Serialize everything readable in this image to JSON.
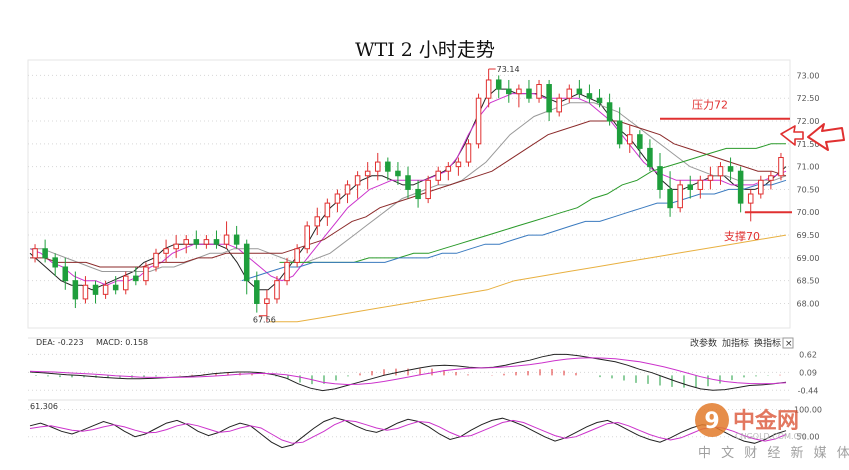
{
  "chart_data": [
    {
      "type": "candlestick",
      "title": "WTI 2 小时走势",
      "ylim": [
        67.55,
        73.25
      ],
      "yticks": [
        "73.00",
        "72.50",
        "72.00",
        "71.50",
        "71.00",
        "70.50",
        "70.00",
        "69.50",
        "69.00",
        "68.50",
        "68.00"
      ],
      "high_label": "73.14",
      "low_label": "67.56",
      "annotations": [
        {
          "text": "压力72",
          "level": 72.05
        },
        {
          "text": "支撑70",
          "level": 70.0
        }
      ],
      "arrow_direction": "up-right",
      "candles": [
        [
          69.0,
          69.3,
          68.9,
          69.2
        ],
        [
          69.2,
          69.4,
          68.9,
          69.0
        ],
        [
          69.0,
          69.1,
          68.6,
          68.8
        ],
        [
          68.8,
          69.0,
          68.3,
          68.5
        ],
        [
          68.5,
          68.7,
          67.9,
          68.1
        ],
        [
          68.1,
          68.6,
          68.0,
          68.4
        ],
        [
          68.4,
          68.5,
          68.0,
          68.2
        ],
        [
          68.2,
          68.5,
          68.1,
          68.4
        ],
        [
          68.4,
          68.6,
          68.2,
          68.3
        ],
        [
          68.3,
          68.7,
          68.2,
          68.6
        ],
        [
          68.6,
          68.8,
          68.4,
          68.5
        ],
        [
          68.5,
          68.9,
          68.4,
          68.8
        ],
        [
          68.8,
          69.2,
          68.7,
          69.1
        ],
        [
          69.1,
          69.4,
          68.9,
          69.2
        ],
        [
          69.2,
          69.5,
          69.0,
          69.3
        ],
        [
          69.3,
          69.5,
          69.1,
          69.4
        ],
        [
          69.4,
          69.6,
          69.2,
          69.3
        ],
        [
          69.3,
          69.5,
          69.2,
          69.4
        ],
        [
          69.4,
          69.6,
          69.2,
          69.3
        ],
        [
          69.3,
          69.8,
          69.2,
          69.5
        ],
        [
          69.5,
          69.7,
          69.2,
          69.3
        ],
        [
          69.3,
          69.4,
          68.2,
          68.5
        ],
        [
          68.5,
          68.7,
          67.8,
          68.0
        ],
        [
          68.0,
          68.3,
          67.6,
          68.1
        ],
        [
          68.1,
          68.6,
          68.0,
          68.5
        ],
        [
          68.5,
          69.0,
          68.4,
          68.9
        ],
        [
          68.9,
          69.3,
          68.8,
          69.2
        ],
        [
          69.2,
          69.8,
          69.1,
          69.7
        ],
        [
          69.7,
          70.1,
          69.5,
          69.9
        ],
        [
          69.9,
          70.3,
          69.7,
          70.2
        ],
        [
          70.2,
          70.5,
          70.0,
          70.4
        ],
        [
          70.4,
          70.7,
          70.2,
          70.6
        ],
        [
          70.6,
          70.9,
          70.3,
          70.8
        ],
        [
          70.8,
          71.1,
          70.5,
          70.9
        ],
        [
          70.9,
          71.3,
          70.7,
          71.1
        ],
        [
          71.1,
          71.2,
          70.7,
          70.9
        ],
        [
          70.9,
          71.1,
          70.6,
          70.8
        ],
        [
          70.8,
          71.0,
          70.3,
          70.5
        ],
        [
          70.5,
          70.7,
          70.1,
          70.3
        ],
        [
          70.3,
          70.8,
          70.2,
          70.7
        ],
        [
          70.7,
          71.0,
          70.6,
          70.9
        ],
        [
          70.9,
          71.1,
          70.7,
          71.0
        ],
        [
          71.0,
          71.2,
          70.8,
          71.1
        ],
        [
          71.1,
          71.6,
          71.0,
          71.5
        ],
        [
          71.5,
          72.6,
          71.4,
          72.5
        ],
        [
          72.5,
          73.14,
          72.3,
          72.9
        ],
        [
          72.9,
          73.0,
          72.5,
          72.7
        ],
        [
          72.7,
          72.9,
          72.4,
          72.6
        ],
        [
          72.6,
          72.8,
          72.3,
          72.7
        ],
        [
          72.7,
          72.9,
          72.4,
          72.5
        ],
        [
          72.5,
          72.9,
          72.4,
          72.8
        ],
        [
          72.8,
          72.9,
          72.0,
          72.2
        ],
        [
          72.2,
          72.6,
          72.1,
          72.5
        ],
        [
          72.5,
          72.8,
          72.4,
          72.7
        ],
        [
          72.7,
          72.9,
          72.5,
          72.6
        ],
        [
          72.6,
          72.8,
          72.4,
          72.5
        ],
        [
          72.5,
          72.7,
          72.3,
          72.4
        ],
        [
          72.4,
          72.6,
          71.9,
          72.0
        ],
        [
          72.0,
          72.3,
          71.4,
          71.5
        ],
        [
          71.5,
          71.9,
          71.3,
          71.7
        ],
        [
          71.7,
          71.8,
          71.2,
          71.4
        ],
        [
          71.4,
          71.6,
          70.9,
          71.0
        ],
        [
          71.0,
          71.3,
          70.3,
          70.5
        ],
        [
          70.5,
          70.9,
          69.9,
          70.1
        ],
        [
          70.1,
          70.7,
          70.0,
          70.6
        ],
        [
          70.6,
          70.8,
          70.3,
          70.5
        ],
        [
          70.5,
          70.8,
          70.3,
          70.7
        ],
        [
          70.7,
          71.0,
          70.5,
          70.8
        ],
        [
          70.8,
          71.1,
          70.6,
          71.0
        ],
        [
          71.0,
          71.2,
          70.7,
          70.9
        ],
        [
          70.9,
          71.0,
          70.0,
          70.2
        ],
        [
          70.2,
          70.5,
          69.8,
          70.4
        ],
        [
          70.4,
          70.8,
          70.3,
          70.7
        ],
        [
          70.7,
          70.9,
          70.5,
          70.8
        ],
        [
          70.8,
          71.3,
          70.7,
          71.2
        ]
      ],
      "moving_averages": [
        {
          "color": "#222222",
          "values": [
            69.1,
            68.9,
            68.7,
            68.5,
            68.4,
            68.4,
            68.3,
            68.4,
            68.5,
            68.6,
            68.7,
            68.9,
            69.0,
            69.2,
            69.3,
            69.3,
            69.3,
            69.3,
            69.3,
            69.2,
            68.9,
            68.5,
            68.3,
            68.3,
            68.5,
            68.8,
            69.1,
            69.4,
            69.8,
            70.1,
            70.3,
            70.5,
            70.7,
            70.8,
            70.8,
            70.7,
            70.6,
            70.6,
            70.7,
            70.8,
            70.9,
            71.1,
            71.5,
            72.0,
            72.5,
            72.7,
            72.7,
            72.6,
            72.6,
            72.6,
            72.5,
            72.4,
            72.5,
            72.6,
            72.5,
            72.4,
            72.1,
            71.8,
            71.6,
            71.3,
            71.0,
            70.7,
            70.5,
            70.5,
            70.6,
            70.7,
            70.8,
            70.8,
            70.6,
            70.5,
            70.5,
            70.6,
            70.8,
            71.0
          ]
        },
        {
          "color": "#cc33cc",
          "values": [
            69.2,
            69.1,
            68.9,
            68.8,
            68.6,
            68.5,
            68.5,
            68.4,
            68.5,
            68.5,
            68.6,
            68.8,
            68.9,
            69.1,
            69.2,
            69.3,
            69.3,
            69.3,
            69.3,
            69.2,
            69.0,
            68.8,
            68.6,
            68.5,
            68.6,
            68.9,
            69.2,
            69.5,
            69.8,
            70.1,
            70.3,
            70.5,
            70.6,
            70.7,
            70.7,
            70.7,
            70.7,
            70.8,
            70.9,
            71.2,
            71.7,
            72.1,
            72.4,
            72.5,
            72.6,
            72.6,
            72.6,
            72.5,
            72.5,
            72.5,
            72.5,
            72.4,
            72.2,
            72.0,
            71.7,
            71.4,
            71.1,
            70.9,
            70.8,
            70.7,
            70.7,
            70.7,
            70.7,
            70.7,
            70.6,
            70.6,
            70.6,
            70.7,
            70.8,
            70.9
          ]
        },
        {
          "color": "#999999",
          "values": [
            69.2,
            69.2,
            69.1,
            69.0,
            68.9,
            68.8,
            68.7,
            68.7,
            68.7,
            68.7,
            68.7,
            68.8,
            68.8,
            68.9,
            69.0,
            69.1,
            69.1,
            69.2,
            69.2,
            69.2,
            69.1,
            69.0,
            68.9,
            68.9,
            69.0,
            69.1,
            69.3,
            69.5,
            69.7,
            69.9,
            70.1,
            70.3,
            70.4,
            70.5,
            70.6,
            70.6,
            70.7,
            70.9,
            71.1,
            71.4,
            71.7,
            71.9,
            72.1,
            72.2,
            72.3,
            72.4,
            72.4,
            72.4,
            72.3,
            72.2,
            72.0,
            71.8,
            71.6,
            71.4,
            71.2,
            71.0,
            70.9,
            70.8,
            70.8,
            70.7,
            70.7,
            70.7,
            70.7,
            70.8
          ]
        },
        {
          "color": "#8b2a2a",
          "values": [
            69.0,
            69.0,
            68.9,
            68.9,
            68.9,
            68.8,
            68.8,
            68.8,
            68.8,
            68.9,
            68.9,
            68.9,
            69.0,
            69.0,
            69.1,
            69.1,
            69.1,
            69.1,
            69.1,
            69.2,
            69.3,
            69.4,
            69.6,
            69.8,
            69.9,
            70.1,
            70.2,
            70.3,
            70.4,
            70.5,
            70.6,
            70.7,
            70.8,
            70.9,
            71.1,
            71.3,
            71.5,
            71.7,
            71.8,
            71.9,
            72.0,
            72.0,
            72.0,
            71.9,
            71.8,
            71.7,
            71.5,
            71.4,
            71.3,
            71.2,
            71.1,
            71.0,
            70.9,
            70.9,
            70.8
          ]
        },
        {
          "color": "#2a9a2a",
          "values": [
            68.9,
            68.9,
            68.9,
            68.9,
            68.9,
            68.9,
            69.0,
            69.0,
            69.0,
            69.1,
            69.1,
            69.2,
            69.3,
            69.4,
            69.5,
            69.6,
            69.7,
            69.8,
            69.9,
            70.0,
            70.1,
            70.3,
            70.4,
            70.6,
            70.7,
            70.9,
            71.0,
            71.1,
            71.2,
            71.3,
            71.4,
            71.4,
            71.4,
            71.5,
            71.5
          ]
        },
        {
          "color": "#3a7abf",
          "values": [
            68.5,
            68.6,
            68.7,
            68.8,
            68.8,
            68.9,
            68.9,
            68.9,
            68.9,
            68.9,
            68.9,
            69.0,
            69.0,
            69.0,
            69.1,
            69.1,
            69.2,
            69.3,
            69.3,
            69.4,
            69.5,
            69.5,
            69.6,
            69.7,
            69.8,
            69.8,
            69.9,
            70.0,
            70.1,
            70.2,
            70.2,
            70.3,
            70.4,
            70.4,
            70.5,
            70.5,
            70.6,
            70.6,
            70.7
          ]
        },
        {
          "color": "#e8b040",
          "values": [
            67.6,
            67.6,
            67.7,
            67.8,
            67.9,
            68.0,
            68.1,
            68.2,
            68.3,
            68.5,
            68.6,
            68.7,
            68.8,
            68.9,
            69.0,
            69.1,
            69.2,
            69.3,
            69.4,
            69.5
          ]
        }
      ]
    },
    {
      "type": "macd",
      "legend": {
        "dea": "DEA: -0.223",
        "macd": "MACD: 0.158"
      },
      "yticks": [
        "0.62",
        "0.09",
        "-0.44"
      ],
      "ylim": [
        -0.55,
        0.75
      ],
      "dif": [
        0.1,
        0.08,
        0.05,
        0.02,
        0.0,
        -0.03,
        -0.06,
        -0.08,
        -0.1,
        -0.1,
        -0.09,
        -0.07,
        -0.05,
        -0.03,
        0.0,
        0.05,
        0.08,
        0.1,
        0.1,
        0.08,
        0.02,
        -0.08,
        -0.25,
        -0.38,
        -0.45,
        -0.4,
        -0.3,
        -0.2,
        -0.1,
        0.0,
        0.08,
        0.15,
        0.22,
        0.28,
        0.3,
        0.28,
        0.24,
        0.22,
        0.24,
        0.3,
        0.38,
        0.45,
        0.55,
        0.62,
        0.62,
        0.58,
        0.52,
        0.46,
        0.4,
        0.3,
        0.18,
        0.08,
        -0.05,
        -0.18,
        -0.3,
        -0.4,
        -0.44,
        -0.42,
        -0.36,
        -0.3,
        -0.28,
        -0.25,
        -0.2
      ],
      "dea": [
        0.12,
        0.11,
        0.1,
        0.08,
        0.06,
        0.04,
        0.02,
        -0.01,
        -0.03,
        -0.05,
        -0.06,
        -0.06,
        -0.06,
        -0.05,
        -0.04,
        -0.02,
        0.0,
        0.03,
        0.05,
        0.06,
        0.05,
        0.02,
        -0.04,
        -0.12,
        -0.2,
        -0.25,
        -0.27,
        -0.26,
        -0.23,
        -0.18,
        -0.12,
        -0.05,
        0.02,
        0.08,
        0.14,
        0.18,
        0.21,
        0.22,
        0.23,
        0.25,
        0.28,
        0.32,
        0.37,
        0.43,
        0.48,
        0.51,
        0.52,
        0.51,
        0.49,
        0.45,
        0.4,
        0.33,
        0.25,
        0.16,
        0.06,
        -0.04,
        -0.12,
        -0.18,
        -0.22,
        -0.24,
        -0.25,
        -0.24,
        -0.22
      ],
      "hist": [
        -0.02,
        -0.03,
        -0.05,
        -0.06,
        -0.06,
        -0.07,
        -0.08,
        -0.07,
        -0.07,
        -0.05,
        -0.03,
        -0.01,
        0.01,
        0.02,
        0.04,
        0.07,
        0.08,
        0.07,
        0.05,
        0.02,
        -0.03,
        -0.1,
        -0.21,
        -0.26,
        -0.25,
        -0.15,
        -0.03,
        0.06,
        0.13,
        0.18,
        0.2,
        0.2,
        0.2,
        0.2,
        0.16,
        0.1,
        0.03,
        0.0,
        0.01,
        0.05,
        0.1,
        0.13,
        0.18,
        0.19,
        0.14,
        0.07,
        0.0,
        -0.05,
        -0.09,
        -0.15,
        -0.22,
        -0.25,
        -0.3,
        -0.34,
        -0.36,
        -0.36,
        -0.32,
        -0.24,
        -0.14,
        -0.06,
        -0.03,
        -0.01,
        0.02
      ]
    },
    {
      "type": "kdj",
      "legend": "61.306",
      "yticks": [
        "100.00",
        "50.00"
      ],
      "ylim": [
        0,
        110
      ],
      "k": [
        70,
        75,
        68,
        60,
        55,
        62,
        70,
        78,
        72,
        60,
        50,
        55,
        65,
        75,
        80,
        72,
        60,
        52,
        58,
        68,
        75,
        70,
        55,
        40,
        30,
        35,
        50,
        65,
        78,
        85,
        80,
        70,
        62,
        58,
        65,
        75,
        82,
        78,
        68,
        55,
        45,
        50,
        62,
        72,
        80,
        84,
        78,
        70,
        60,
        50,
        42,
        48,
        58,
        68,
        76,
        80,
        72,
        62,
        52,
        45,
        40,
        48,
        58,
        66,
        72,
        70,
        60,
        50,
        42,
        38,
        45,
        55,
        61
      ],
      "d": [
        65,
        68,
        70,
        66,
        62,
        60,
        63,
        68,
        72,
        68,
        62,
        57,
        58,
        63,
        70,
        74,
        70,
        64,
        58,
        60,
        66,
        70,
        66,
        55,
        44,
        38,
        40,
        50,
        60,
        72,
        80,
        78,
        72,
        66,
        62,
        65,
        72,
        78,
        76,
        68,
        58,
        50,
        52,
        60,
        68,
        76,
        80,
        76,
        68,
        60,
        52,
        47,
        50,
        58,
        66,
        74,
        76,
        70,
        62,
        54,
        48,
        44,
        48,
        56,
        64,
        68,
        66,
        60,
        52,
        46,
        42,
        46,
        54
      ]
    }
  ],
  "toolbar": {
    "btn_params": "改参数",
    "btn_add": "加指标",
    "btn_switch": "换指标",
    "btn_close": "×"
  },
  "watermark": {
    "brand": "中金网",
    "slogan": "中 文 财 经 新 媒 体",
    "url": "CNGOLD.COM.CN",
    "logo_glyph": "9"
  }
}
